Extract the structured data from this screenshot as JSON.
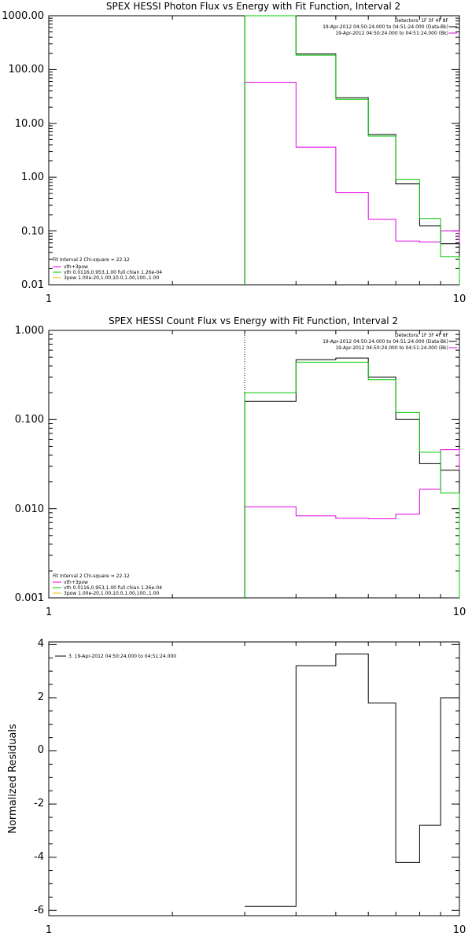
{
  "colors": {
    "data": "#000000",
    "fit": "#e000e0",
    "component": "#00c800",
    "marker": "#00c800"
  },
  "chart_data": [
    {
      "type": "line",
      "title": "SPEX HESSI Photon Flux vs Energy with Fit Function, Interval 2",
      "xlabel": "",
      "ylabel": "",
      "xscale": "log",
      "yscale": "log",
      "xlim": [
        1,
        10
      ],
      "ylim": [
        0.01,
        1000
      ],
      "xticks": [
        "1",
        "10"
      ],
      "yticks": [
        "0.01",
        "0.10",
        "1.00",
        "10.00",
        "100.00",
        "1000.00"
      ],
      "legend_top": [
        "Detectors: 1F 3F 4F 8F",
        "19-Apr-2012 04:50:24.000 to 04:51:24.000 (Data-Bk)",
        "19-Apr-2012 04:50:24.000 to 04:51:24.000 (Bk)"
      ],
      "legend_bottom": [
        "Fit Interval 2   Chi-square = 22.12",
        "vth+3pow",
        "vth 0.0116,0.953,1.00  full chian 1.26e-04",
        "3pow 1.00e-20,1.00,10.0,1.00,100.,1.00"
      ],
      "marker_x": 3,
      "bin_edges": [
        3,
        4,
        5,
        6,
        7,
        8,
        9,
        10
      ],
      "series": [
        {
          "name": "19-Apr-2012 04:50:24.000 to 04:51:24.000 (Data-Bk)",
          "values": [
            1000,
            195,
            30,
            6.2,
            0.75,
            0.125,
            0.058
          ]
        },
        {
          "name": "19-Apr-2012 04:50:24.000 to 04:51:24.000 (Bk)",
          "values": [
            58,
            3.6,
            0.52,
            0.165,
            0.065,
            0.062,
            0.1
          ]
        },
        {
          "name": "vth+3pow",
          "values": [
            1000,
            185,
            28,
            5.8,
            0.9,
            0.17,
            0.033
          ]
        }
      ]
    },
    {
      "type": "line",
      "title": "SPEX HESSI Count Flux vs Energy with Fit Function, Interval 2",
      "xlabel": "",
      "ylabel": "",
      "xscale": "log",
      "yscale": "log",
      "xlim": [
        1,
        10
      ],
      "ylim": [
        0.001,
        1
      ],
      "xticks": [
        "1",
        "10"
      ],
      "yticks": [
        "0.001",
        "0.010",
        "0.100",
        "1.000"
      ],
      "legend_top": [
        "Detectors: 1F 3F 4F 8F",
        "19-Apr-2012 04:50:24.000 to 04:51:24.000 (Data-Bk)",
        "19-Apr-2012 04:50:24.000 to 04:51:24.000 (Bk)"
      ],
      "legend_bottom": [
        "Fit Interval 2   Chi-square = 22.12",
        "vth+3pow",
        "vth 0.0116,0.953,1.00  full chian 1.26e-04",
        "3pow 1.00e-20,1.00,10.0,1.00,100.,1.00"
      ],
      "marker_x": 3,
      "bin_edges": [
        3,
        4,
        5,
        6,
        7,
        8,
        9,
        10
      ],
      "series": [
        {
          "name": "19-Apr-2012 04:50:24.000 to 04:51:24.000 (Data-Bk)",
          "values": [
            0.16,
            0.47,
            0.49,
            0.3,
            0.1,
            0.032,
            0.027
          ]
        },
        {
          "name": "19-Apr-2012 04:50:24.000 to 04:51:24.000 (Bk)",
          "values": [
            0.0105,
            0.0083,
            0.0078,
            0.0077,
            0.0087,
            0.0165,
            0.046
          ]
        },
        {
          "name": "vth+3pow",
          "values": [
            0.2,
            0.44,
            0.44,
            0.28,
            0.12,
            0.043,
            0.015
          ]
        }
      ]
    },
    {
      "type": "line",
      "title": "",
      "xlabel": "",
      "ylabel": "Normalized Residuals",
      "xscale": "log",
      "yscale": "linear",
      "xlim": [
        1,
        10
      ],
      "ylim": [
        -6.2,
        4.1
      ],
      "xticks": [
        "1",
        "10"
      ],
      "yticks": [
        "-6",
        "-4",
        "-2",
        "0",
        "2",
        "4"
      ],
      "legend_top": [
        "3. 19-Apr-2012 04:50:24.000 to 04:51:24.000"
      ],
      "bin_edges": [
        3,
        4,
        5,
        6,
        7,
        8,
        9,
        10
      ],
      "series": [
        {
          "name": "3. 19-Apr-2012 04:50:24.000 to 04:51:24.000",
          "values": [
            -5.85,
            3.2,
            3.65,
            1.8,
            -4.2,
            -2.8,
            2.0
          ]
        }
      ]
    }
  ]
}
